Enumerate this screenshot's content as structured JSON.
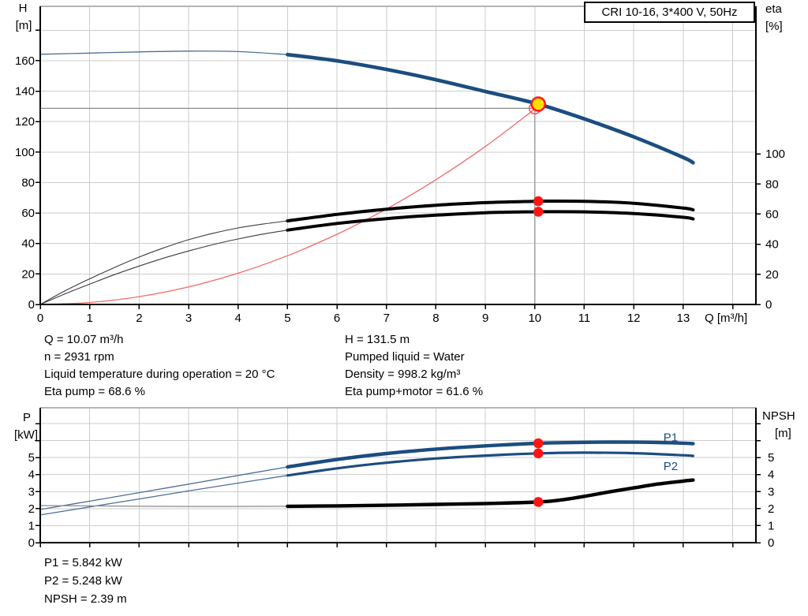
{
  "title_box": {
    "label": "CRI 10-16, 3*400 V, 50Hz"
  },
  "info_top": {
    "left": [
      "Q = 10.07 m³/h",
      "n = 2931 rpm",
      "Liquid temperature during operation = 20 °C",
      "Eta pump = 68.6 %"
    ],
    "right": [
      "H = 131.5 m",
      "Pumped liquid = Water",
      "Density = 998.2 kg/m³",
      "Eta pump+motor = 61.6 %"
    ]
  },
  "info_bottom": [
    "P1 = 5.842 kW",
    "P2 = 5.248 kW",
    "NPSH = 2.39 m"
  ],
  "colors": {
    "curve_blue": "#1c4d80",
    "qh_thin": "#4d6f96",
    "curve_black": "#000000",
    "eta_thin": "#3d3d3d",
    "system_curve_red": "#f26a6a",
    "dot_red": "#ff1414",
    "duty_yellow": "#ffdf00",
    "open_circle_red": "#ff5050",
    "crosshair_gray": "#8c8c8c",
    "grid_gray": "#cdcdcd",
    "border_gray": "#b4b4b4",
    "axis_black": "#000000",
    "text_black": "#000000",
    "npsh_thin_gray": "#8a8a8a"
  },
  "chart_data": [
    {
      "type": "line",
      "id": "qh-eta-chart",
      "title": "CRI 10-16, 3*400 V, 50Hz",
      "grid": true,
      "x_axis": {
        "label": "Q [m³/h]",
        "min": 0,
        "max": 14.47,
        "tick_min": 0,
        "tick_max": 14,
        "tick_step": 1,
        "label_max": 13
      },
      "left_axis": {
        "title": [
          "H",
          "[m]"
        ],
        "min": 0,
        "max": 195.7,
        "tick_step": 20,
        "tick_max": 180,
        "label_max": 160
      },
      "right_axis": {
        "title": [
          "eta",
          "[%]"
        ],
        "min": 0,
        "max": 198,
        "tick_step": 20,
        "tick_max": 100,
        "label_max": 100
      },
      "series": [
        {
          "name": "system-curve",
          "axis": "left",
          "color": "system_curve_red",
          "width": 1.3,
          "points": [
            [
              0,
              0
            ],
            [
              1,
              1.3
            ],
            [
              2,
              5.1
            ],
            [
              3,
              11.5
            ],
            [
              4,
              20.5
            ],
            [
              5,
              32
            ],
            [
              6,
              46.1
            ],
            [
              7,
              62.7
            ],
            [
              8,
              81.9
            ],
            [
              9,
              103.7
            ],
            [
              10,
              128.3
            ]
          ]
        },
        {
          "name": "qh-curve",
          "axis": "left",
          "color": "curve_blue",
          "thin_color": "qh_thin",
          "thick_from": 5,
          "thin_width": 1.3,
          "thick_width": 4.6,
          "points": [
            [
              0,
              164.2
            ],
            [
              1,
              165.0
            ],
            [
              2,
              165.8
            ],
            [
              3,
              166.3
            ],
            [
              4,
              166.0
            ],
            [
              5,
              164.0
            ],
            [
              6,
              159.9
            ],
            [
              7,
              154.3
            ],
            [
              8,
              147.5
            ],
            [
              9,
              139.8
            ],
            [
              10.07,
              131.5
            ],
            [
              11,
              121.8
            ],
            [
              12,
              110.0
            ],
            [
              13,
              96.5
            ],
            [
              13.2,
              93.0
            ]
          ]
        },
        {
          "name": "eta-pump-curve",
          "axis": "right",
          "color": "curve_black",
          "thin_color": "eta_thin",
          "thick_from": 5,
          "thin_width": 1.1,
          "thick_width": 4.0,
          "points": [
            [
              0,
              0
            ],
            [
              0.5,
              9
            ],
            [
              1,
              17
            ],
            [
              1.5,
              24.5
            ],
            [
              2,
              31.5
            ],
            [
              2.5,
              37.6
            ],
            [
              3,
              43
            ],
            [
              3.5,
              47.3
            ],
            [
              4,
              50.8
            ],
            [
              4.5,
              53.4
            ],
            [
              5,
              55.5
            ],
            [
              6,
              59.8
            ],
            [
              7,
              63.3
            ],
            [
              8,
              65.9
            ],
            [
              9,
              67.6
            ],
            [
              10,
              68.5
            ],
            [
              10.07,
              68.6
            ],
            [
              11,
              68.5
            ],
            [
              12,
              67.2
            ],
            [
              13,
              64.0
            ],
            [
              13.2,
              62.8
            ]
          ]
        },
        {
          "name": "eta-pump-motor-curve",
          "axis": "right",
          "color": "curve_black",
          "thin_color": "eta_thin",
          "thick_from": 5,
          "thin_width": 1.1,
          "thick_width": 4.0,
          "points": [
            [
              0,
              0
            ],
            [
              0.5,
              7
            ],
            [
              1,
              13.5
            ],
            [
              1.5,
              19.8
            ],
            [
              2,
              25.5
            ],
            [
              2.5,
              30.8
            ],
            [
              3,
              35.5
            ],
            [
              3.5,
              39.8
            ],
            [
              4,
              43.5
            ],
            [
              4.5,
              46.7
            ],
            [
              5,
              49.4
            ],
            [
              6,
              53.8
            ],
            [
              7,
              57.0
            ],
            [
              8,
              59.3
            ],
            [
              9,
              60.9
            ],
            [
              10,
              61.55
            ],
            [
              10.07,
              61.6
            ],
            [
              11,
              61.5
            ],
            [
              12,
              60.4
            ],
            [
              13,
              57.9
            ],
            [
              13.2,
              56.8
            ]
          ]
        }
      ],
      "markers": [
        {
          "kind": "crosshair",
          "q": 10.0,
          "v": 128.7,
          "axis": "left"
        },
        {
          "kind": "open-circle",
          "q": 10.0,
          "v": 128.7,
          "axis": "left"
        },
        {
          "kind": "duty-point",
          "q": 10.07,
          "v": 131.5,
          "axis": "left"
        },
        {
          "kind": "dot",
          "q": 10.07,
          "v": 68.6,
          "axis": "right"
        },
        {
          "kind": "dot",
          "q": 10.07,
          "v": 61.6,
          "axis": "right"
        }
      ],
      "annotations": []
    },
    {
      "type": "line",
      "id": "power-npsh-chart",
      "grid": true,
      "x_axis": {
        "label": null,
        "min": 0,
        "max": 14.47,
        "tick_min": 0,
        "tick_max": 14,
        "tick_step": 1,
        "label_max": null
      },
      "left_axis": {
        "title": [
          "P",
          "[kW]"
        ],
        "min": 0,
        "max": 7.93,
        "tick_step": 1,
        "tick_max": 7,
        "label_max": 5
      },
      "right_axis": {
        "title": [
          "NPSH",
          "[m]"
        ],
        "min": 0,
        "max": 7.93,
        "tick_step": 1,
        "tick_max": 7,
        "label_max": 5
      },
      "series": [
        {
          "name": "p1-curve",
          "axis": "left",
          "color": "curve_blue",
          "thin_color": "qh_thin",
          "thick_from": 5,
          "thin_width": 1.3,
          "thick_width": 4.4,
          "points": [
            [
              0,
              1.95
            ],
            [
              1,
              2.44
            ],
            [
              2,
              2.94
            ],
            [
              3,
              3.44
            ],
            [
              4,
              3.95
            ],
            [
              5,
              4.45
            ],
            [
              6,
              4.89
            ],
            [
              7,
              5.24
            ],
            [
              8,
              5.5
            ],
            [
              9,
              5.69
            ],
            [
              10.07,
              5.842
            ],
            [
              11,
              5.9
            ],
            [
              12,
              5.91
            ],
            [
              13,
              5.85
            ],
            [
              13.2,
              5.82
            ]
          ]
        },
        {
          "name": "p2-curve",
          "axis": "left",
          "color": "curve_blue",
          "thin_color": "qh_thin",
          "thick_from": 5,
          "thin_width": 1.3,
          "thick_width": 3.2,
          "points": [
            [
              0,
              1.63
            ],
            [
              1,
              2.1
            ],
            [
              2,
              2.57
            ],
            [
              3,
              3.04
            ],
            [
              4,
              3.5
            ],
            [
              5,
              3.95
            ],
            [
              6,
              4.37
            ],
            [
              7,
              4.7
            ],
            [
              8,
              4.95
            ],
            [
              9,
              5.12
            ],
            [
              10.07,
              5.248
            ],
            [
              11,
              5.29
            ],
            [
              12,
              5.26
            ],
            [
              13,
              5.14
            ],
            [
              13.2,
              5.1
            ]
          ]
        },
        {
          "name": "npsh-curve",
          "axis": "right",
          "color": "curve_black",
          "thin_color": "npsh_thin_gray",
          "thick_from": 5,
          "thin_width": 1.3,
          "thick_width": 4.4,
          "points": [
            [
              0,
              2.18
            ],
            [
              1,
              2.16
            ],
            [
              2,
              2.14
            ],
            [
              3,
              2.13
            ],
            [
              4,
              2.13
            ],
            [
              5,
              2.14
            ],
            [
              6,
              2.16
            ],
            [
              7,
              2.2
            ],
            [
              8,
              2.25
            ],
            [
              9,
              2.3
            ],
            [
              10.07,
              2.39
            ],
            [
              10.5,
              2.5
            ],
            [
              11,
              2.72
            ],
            [
              11.5,
              2.98
            ],
            [
              12,
              3.22
            ],
            [
              12.5,
              3.45
            ],
            [
              13,
              3.62
            ],
            [
              13.2,
              3.68
            ]
          ]
        }
      ],
      "markers": [
        {
          "kind": "dot",
          "q": 10.07,
          "v": 5.842,
          "axis": "left"
        },
        {
          "kind": "dot",
          "q": 10.07,
          "v": 5.248,
          "axis": "left"
        },
        {
          "kind": "dot",
          "q": 10.07,
          "v": 2.39,
          "axis": "right"
        }
      ],
      "annotations": [
        {
          "text": "P1",
          "q": 12.6,
          "v": 5.97,
          "axis": "left",
          "color": "curve_blue"
        },
        {
          "text": "P2",
          "q": 12.6,
          "v": 4.26,
          "axis": "left",
          "color": "curve_blue"
        }
      ]
    }
  ]
}
